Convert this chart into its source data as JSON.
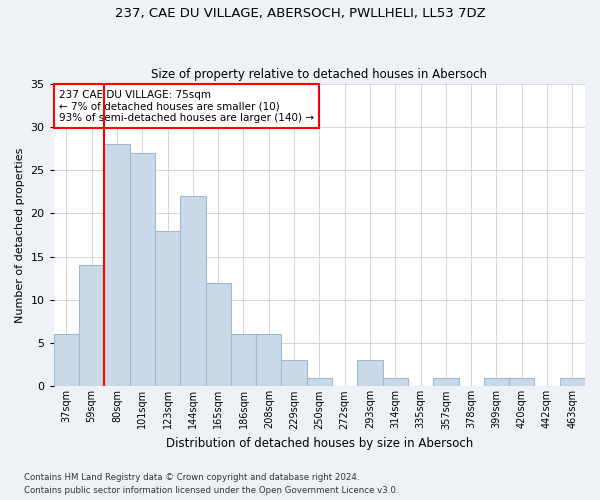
{
  "title1": "237, CAE DU VILLAGE, ABERSOCH, PWLLHELI, LL53 7DZ",
  "title2": "Size of property relative to detached houses in Abersoch",
  "xlabel": "Distribution of detached houses by size in Abersoch",
  "ylabel": "Number of detached properties",
  "categories": [
    "37sqm",
    "59sqm",
    "80sqm",
    "101sqm",
    "123sqm",
    "144sqm",
    "165sqm",
    "186sqm",
    "208sqm",
    "229sqm",
    "250sqm",
    "272sqm",
    "293sqm",
    "314sqm",
    "335sqm",
    "357sqm",
    "378sqm",
    "399sqm",
    "420sqm",
    "442sqm",
    "463sqm"
  ],
  "values": [
    6,
    14,
    28,
    27,
    18,
    22,
    12,
    6,
    6,
    3,
    1,
    0,
    3,
    1,
    0,
    1,
    0,
    1,
    1,
    0,
    1
  ],
  "bar_color": "#c9d9e8",
  "bar_edge_color": "#a0b8d0",
  "ylim": [
    0,
    35
  ],
  "yticks": [
    0,
    5,
    10,
    15,
    20,
    25,
    30,
    35
  ],
  "property_label": "237 CAE DU VILLAGE: 75sqm",
  "annotation_line1": "← 7% of detached houses are smaller (10)",
  "annotation_line2": "93% of semi-detached houses are larger (140) →",
  "red_line_x": 1.5,
  "footer1": "Contains HM Land Registry data © Crown copyright and database right 2024.",
  "footer2": "Contains public sector information licensed under the Open Government Licence v3.0.",
  "background_color": "#eef2f7",
  "plot_background": "#ffffff"
}
